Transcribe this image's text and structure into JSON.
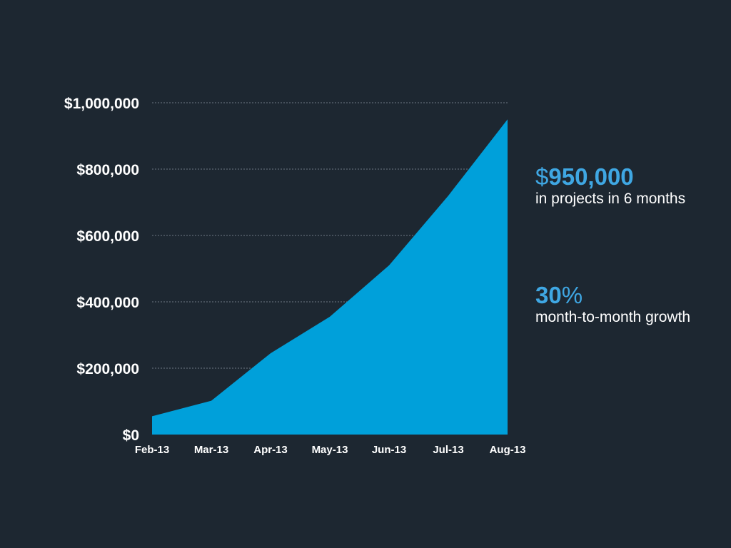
{
  "colors": {
    "background": "#1d2731",
    "area_fill": "#00a0da",
    "accent_text": "#3fa7e3",
    "gridline": "#6f7a85",
    "text": "#ffffff"
  },
  "chart_data": {
    "type": "area",
    "title": "",
    "xlabel": "",
    "ylabel": "",
    "categories": [
      "Feb-13",
      "Mar-13",
      "Apr-13",
      "May-13",
      "Jun-13",
      "Jul-13",
      "Aug-13"
    ],
    "series": [
      {
        "values": [
          55000,
          102000,
          245000,
          355000,
          510000,
          720000,
          950000
        ]
      }
    ],
    "ylim": [
      0,
      1000000
    ],
    "yticks": [
      0,
      200000,
      400000,
      600000,
      800000,
      1000000
    ],
    "ytick_labels": [
      "$0",
      "$200,000",
      "$400,000",
      "$600,000",
      "$800,000",
      "$1,000,000"
    ],
    "grid": true,
    "legend": "none"
  },
  "stats": [
    {
      "symbol": "$",
      "value": "950,000",
      "caption": "in projects in 6 months"
    },
    {
      "value": "30",
      "symbol": "%",
      "caption": "month-to-month growth"
    }
  ]
}
